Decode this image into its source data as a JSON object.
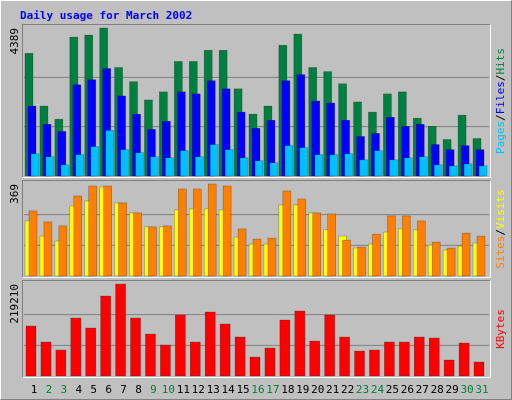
{
  "title": "Daily usage for March 2002",
  "legend_separator": "/",
  "chart_data": [
    {
      "type": "bar",
      "ylim": [
        0,
        4389
      ],
      "yticks": [
        4389
      ],
      "grid": true,
      "series": [
        {
          "name": "Hits",
          "color": "#008040",
          "values": [
            3637,
            2074,
            1683,
            4118,
            4179,
            4389,
            3217,
            2796,
            2255,
            2495,
            3397,
            3397,
            3728,
            3728,
            2585,
            1834,
            2074,
            3878,
            4209,
            3217,
            3096,
            2736,
            2195,
            1894,
            2435,
            2495,
            1714,
            1473,
            1082,
            1804,
            1112
          ]
        },
        {
          "name": "Files",
          "color": "#0000ff",
          "values": [
            2074,
            1533,
            1323,
            2706,
            2856,
            3187,
            2375,
            1834,
            1383,
            1623,
            2495,
            2435,
            2826,
            2585,
            1894,
            1413,
            1653,
            2826,
            3006,
            2225,
            2164,
            1653,
            1172,
            1263,
            1744,
            1473,
            1533,
            932,
            782,
            902,
            782
          ]
        },
        {
          "name": "Pages",
          "color": "#00c0ff",
          "values": [
            661,
            571,
            331,
            631,
            872,
            1353,
            782,
            691,
            571,
            541,
            752,
            571,
            932,
            782,
            541,
            451,
            391,
            902,
            842,
            631,
            631,
            661,
            481,
            752,
            481,
            541,
            571,
            331,
            301,
            361,
            301
          ]
        }
      ]
    },
    {
      "type": "bar",
      "ylim": [
        0,
        369
      ],
      "yticks": [
        369
      ],
      "grid": true,
      "series": [
        {
          "name": "Visits",
          "color": "#ffff00",
          "values": [
            221,
            160,
            140,
            281,
            301,
            357,
            293,
            253,
            197,
            197,
            265,
            269,
            269,
            265,
            156,
            128,
            128,
            285,
            285,
            253,
            185,
            160,
            112,
            128,
            176,
            189,
            185,
            124,
            104,
            120,
            132
          ]
        },
        {
          "name": "Sites",
          "color": "#ff8000",
          "values": [
            261,
            217,
            201,
            321,
            361,
            361,
            293,
            253,
            197,
            201,
            349,
            349,
            369,
            361,
            189,
            148,
            152,
            341,
            309,
            253,
            249,
            144,
            116,
            168,
            241,
            241,
            221,
            136,
            112,
            172,
            160
          ]
        }
      ]
    },
    {
      "type": "bar",
      "ylim": [
        0,
        219210
      ],
      "yticks": [
        219210
      ],
      "grid": true,
      "categories": [
        "1",
        "2",
        "3",
        "4",
        "5",
        "6",
        "7",
        "8",
        "9",
        "10",
        "11",
        "12",
        "13",
        "14",
        "15",
        "16",
        "17",
        "18",
        "19",
        "20",
        "21",
        "22",
        "23",
        "24",
        "25",
        "26",
        "27",
        "28",
        "29",
        "30",
        "31"
      ],
      "x_label_colors": [
        "#000000",
        "#008040",
        "#008040",
        "#000000",
        "#000000",
        "#000000",
        "#000000",
        "#000000",
        "#008040",
        "#008040",
        "#000000",
        "#000000",
        "#000000",
        "#000000",
        "#000000",
        "#008040",
        "#008040",
        "#000000",
        "#000000",
        "#000000",
        "#000000",
        "#000000",
        "#008040",
        "#008040",
        "#000000",
        "#000000",
        "#000000",
        "#000000",
        "#000000",
        "#008040",
        "#008040"
      ],
      "series": [
        {
          "name": "KBytes",
          "color": "#ff0000",
          "values": [
            119135,
            81012,
            61950,
            138197,
            114370,
            190616,
            219210,
            138197,
            100073,
            73864,
            145345,
            81012,
            152493,
            123900,
            92925,
            45271,
            66716,
            133431,
            154876,
            83395,
            145345,
            92925,
            59568,
            61950,
            81012,
            81012,
            92925,
            90543,
            38123,
            78629,
            33358
          ]
        }
      ]
    }
  ]
}
